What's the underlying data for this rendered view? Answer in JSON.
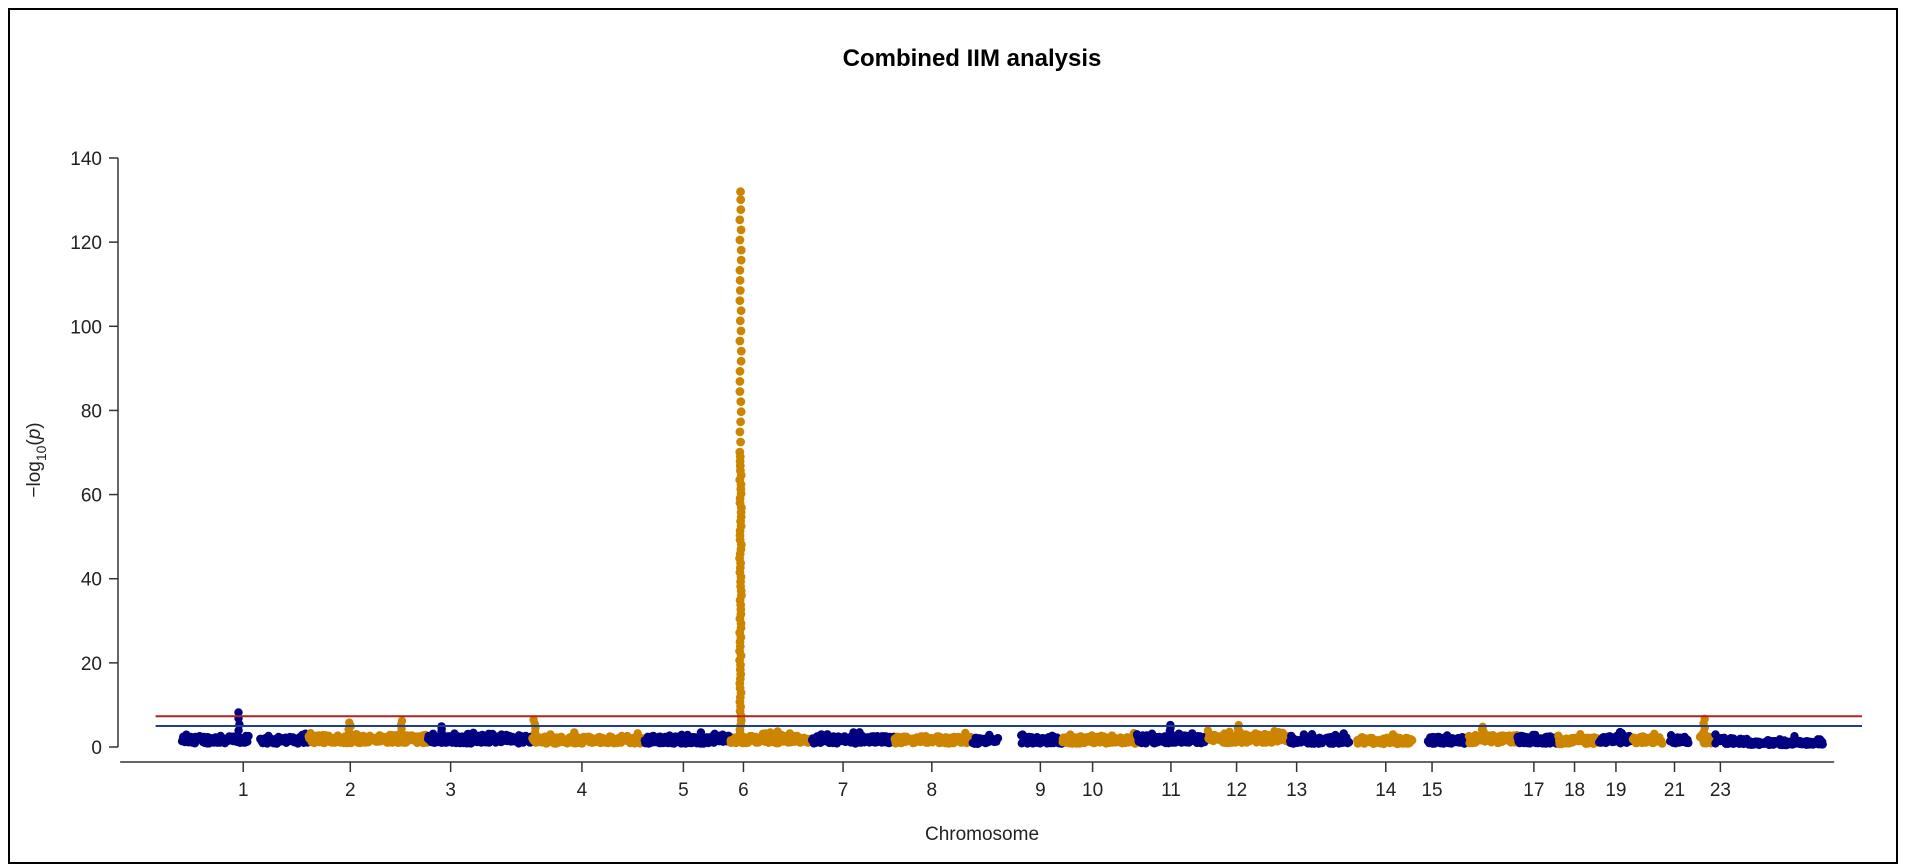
{
  "chart_data": {
    "type": "scatter",
    "subtype": "manhattan",
    "title": "Combined IIM analysis",
    "xlabel": "Chromosome",
    "ylabel_parts": [
      "−log",
      "10",
      "(",
      "p",
      ")"
    ],
    "ylim": [
      0,
      140
    ],
    "yticks": [
      0,
      20,
      40,
      60,
      80,
      100,
      120,
      140
    ],
    "grid": false,
    "legend": "none",
    "colors": {
      "odd_chromosome": "#000080",
      "even_chromosome": "#CD8500",
      "genome_wide_line": "#B22222",
      "suggestive_line": "#1F3E8E",
      "axis": "#333333"
    },
    "thresholds": [
      {
        "name": "genome-wide significance",
        "y": 7.3,
        "color": "#B22222"
      },
      {
        "name": "suggestive",
        "y": 5.0,
        "color": "#1F3E8E"
      }
    ],
    "x_tick_labels": [
      {
        "label": "1",
        "x": 1.65
      },
      {
        "label": "2",
        "x": 4.52
      },
      {
        "label": "3",
        "x": 7.21
      },
      {
        "label": "4",
        "x": 10.73
      },
      {
        "label": "5",
        "x": 13.45
      },
      {
        "label": "6",
        "x": 15.06
      },
      {
        "label": "7",
        "x": 17.73
      },
      {
        "label": "8",
        "x": 20.11
      },
      {
        "label": "9",
        "x": 23.02
      },
      {
        "label": "10",
        "x": 24.42
      },
      {
        "label": "11",
        "x": 26.52
      },
      {
        "label": "12",
        "x": 28.28
      },
      {
        "label": "13",
        "x": 29.89
      },
      {
        "label": "14",
        "x": 32.28
      },
      {
        "label": "15",
        "x": 33.52
      },
      {
        "label": "17",
        "x": 36.25
      },
      {
        "label": "18",
        "x": 37.34
      },
      {
        "label": "19",
        "x": 38.45
      },
      {
        "label": "21",
        "x": 40.02
      },
      {
        "label": "23",
        "x": 41.25
      }
    ],
    "xlim": [
      -1.6,
      45.1
    ],
    "segments": [
      {
        "chr": "1",
        "x": [
          0,
          1.8
        ],
        "color": "#000080",
        "base": 2.4
      },
      {
        "chr": "1b",
        "x": [
          2.1,
          3.4
        ],
        "color": "#000080",
        "base": 2.2
      },
      {
        "chr": "2",
        "x": [
          3.4,
          6.6
        ],
        "color": "#CD8500",
        "base": 2.6
      },
      {
        "chr": "3",
        "x": [
          6.6,
          9.4
        ],
        "color": "#000080",
        "base": 2.4
      },
      {
        "chr": "4",
        "x": [
          9.4,
          12.4
        ],
        "color": "#CD8500",
        "base": 2.3
      },
      {
        "chr": "5",
        "x": [
          12.4,
          14.7
        ],
        "color": "#000080",
        "base": 2.3
      },
      {
        "chr": "6",
        "x": [
          14.7,
          16.9
        ],
        "color": "#CD8500",
        "base": 2.4
      },
      {
        "chr": "7",
        "x": [
          16.9,
          19.1
        ],
        "color": "#000080",
        "base": 2.4
      },
      {
        "chr": "8",
        "x": [
          19.1,
          21.2
        ],
        "color": "#CD8500",
        "base": 2.3
      },
      {
        "chr": "8b",
        "x": [
          21.2,
          21.9
        ],
        "color": "#000080",
        "base": 1.9
      },
      {
        "chr": "9",
        "x": [
          22.5,
          23.6
        ],
        "color": "#000080",
        "base": 2.2
      },
      {
        "chr": "10",
        "x": [
          23.6,
          25.6
        ],
        "color": "#CD8500",
        "base": 2.2
      },
      {
        "chr": "11",
        "x": [
          25.6,
          27.5
        ],
        "color": "#000080",
        "base": 2.5
      },
      {
        "chr": "12",
        "x": [
          27.5,
          29.7
        ],
        "color": "#CD8500",
        "base": 2.7
      },
      {
        "chr": "13",
        "x": [
          29.7,
          31.3
        ],
        "color": "#000080",
        "base": 2.2
      },
      {
        "chr": "14",
        "x": [
          31.5,
          33.0
        ],
        "color": "#CD8500",
        "base": 2.0
      },
      {
        "chr": "15",
        "x": [
          33.4,
          34.5
        ],
        "color": "#000080",
        "base": 2.2
      },
      {
        "chr": "16",
        "x": [
          34.5,
          35.8
        ],
        "color": "#CD8500",
        "base": 2.6
      },
      {
        "chr": "17",
        "x": [
          35.8,
          36.9
        ],
        "color": "#000080",
        "base": 2.3
      },
      {
        "chr": "18",
        "x": [
          36.9,
          38.0
        ],
        "color": "#CD8500",
        "base": 2.0
      },
      {
        "chr": "19",
        "x": [
          38.0,
          38.9
        ],
        "color": "#000080",
        "base": 2.4
      },
      {
        "chr": "20",
        "x": [
          38.9,
          39.7
        ],
        "color": "#CD8500",
        "base": 2.2
      },
      {
        "chr": "21",
        "x": [
          39.9,
          40.4
        ],
        "color": "#000080",
        "base": 2.4
      },
      {
        "chr": "22",
        "x": [
          40.7,
          41.1
        ],
        "color": "#CD8500",
        "base": 2.4
      },
      {
        "chr": "23",
        "x": [
          41.1,
          42.0
        ],
        "color": "#000080",
        "base": 2.0
      },
      {
        "chr": "23b",
        "x": [
          42.0,
          44.0
        ],
        "color": "#000080",
        "base": 1.3
      }
    ],
    "peaks": [
      {
        "x": 1.55,
        "y": 8.2,
        "color": "#000080"
      },
      {
        "x": 4.5,
        "y": 5.8,
        "color": "#CD8500"
      },
      {
        "x": 5.9,
        "y": 6.2,
        "color": "#CD8500"
      },
      {
        "x": 7.0,
        "y": 4.9,
        "color": "#000080"
      },
      {
        "x": 9.45,
        "y": 6.5,
        "color": "#CD8500"
      },
      {
        "x": 26.5,
        "y": 5.2,
        "color": "#000080"
      },
      {
        "x": 28.3,
        "y": 5.2,
        "color": "#CD8500"
      },
      {
        "x": 34.9,
        "y": 4.8,
        "color": "#CD8500"
      },
      {
        "x": 40.8,
        "y": 6.7,
        "color": "#CD8500"
      }
    ],
    "main_peak": {
      "chr": "6",
      "x": 14.98,
      "y_max": 132.0,
      "color": "#CD8500"
    }
  }
}
